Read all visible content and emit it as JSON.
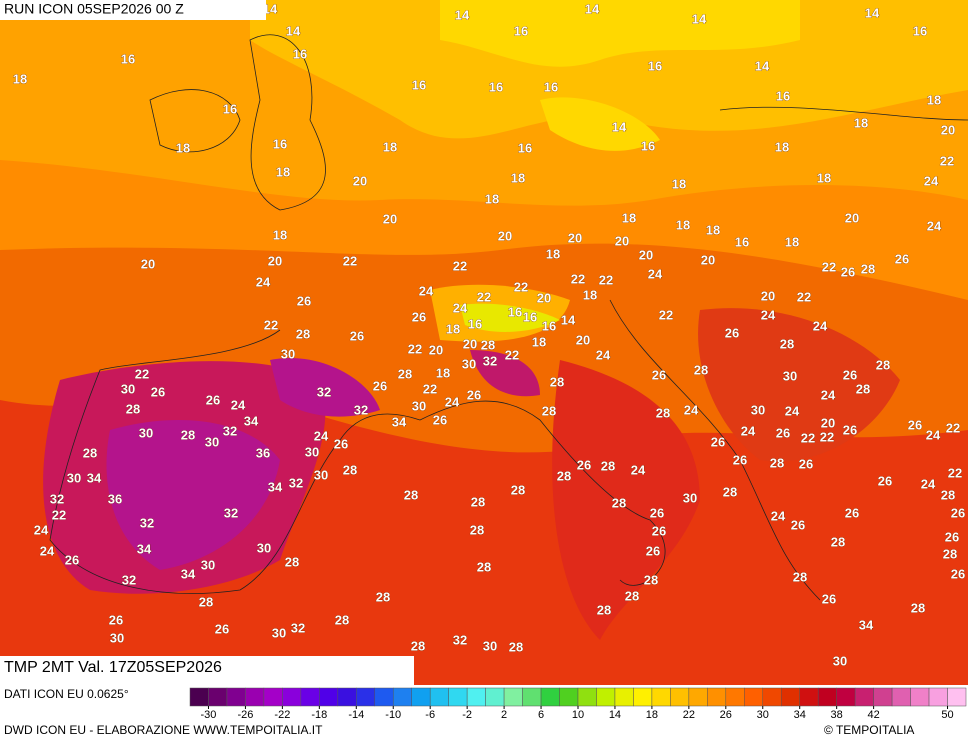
{
  "header": {
    "run": "RUN ICON 05SEP2026 00 Z",
    "field": "TMP 2MT Val. 17Z05SEP2026",
    "source": "DATI ICON EU 0.0625°",
    "credit": "DWD ICON EU - ELABORAZIONE WWW.TEMPOITALIA.IT",
    "copyright": "© TEMPOITALIA"
  },
  "map": {
    "labels": [
      18,
      16,
      16,
      18,
      16,
      14,
      14,
      14,
      16,
      14,
      14,
      14,
      16,
      16,
      14,
      16,
      16,
      16,
      16,
      18,
      18,
      20,
      14,
      16,
      16,
      18,
      16,
      18,
      20,
      18,
      18,
      18,
      18,
      22,
      24,
      18,
      20,
      18,
      20,
      20,
      20,
      18,
      18,
      18,
      16,
      18,
      20,
      24,
      20,
      20,
      22,
      22,
      18,
      20,
      24,
      20,
      22,
      26,
      28,
      26,
      24,
      26,
      24,
      22,
      22,
      20,
      22,
      22,
      18,
      24,
      22,
      28,
      26,
      26,
      18,
      16,
      16,
      16,
      16,
      14,
      22,
      20,
      22,
      24,
      24,
      30,
      22,
      20,
      20,
      28,
      32,
      22,
      18,
      20,
      24,
      26,
      28,
      30,
      22,
      30,
      26,
      32,
      26,
      28,
      18,
      22,
      28,
      26,
      28,
      30,
      26,
      28,
      28,
      26,
      24,
      32,
      30,
      24,
      26,
      28,
      28,
      24,
      30,
      24,
      24,
      28,
      30,
      28,
      32,
      34,
      24,
      34,
      26,
      26,
      20,
      26,
      24,
      26,
      22,
      26,
      22,
      26,
      24,
      22,
      28,
      30,
      36,
      30,
      28,
      26,
      28,
      24,
      26,
      28,
      26,
      30,
      34,
      34,
      32,
      30,
      28,
      26,
      24,
      22,
      32,
      36,
      28,
      28,
      28,
      30,
      28,
      28,
      22,
      32,
      32,
      28,
      26,
      24,
      26,
      26,
      26,
      24,
      28,
      26,
      26,
      28,
      34,
      30,
      24,
      26,
      30,
      28,
      28,
      26,
      28,
      34,
      32,
      28,
      26,
      28,
      28,
      28,
      28,
      26,
      28,
      26,
      28,
      26,
      28,
      34,
      30,
      32,
      30,
      28,
      32,
      30,
      28,
      30
    ]
  },
  "colorbar": {
    "lim": [
      -32,
      52
    ],
    "ticks": [
      -30,
      -26,
      -22,
      -18,
      -14,
      -10,
      -6,
      -2,
      2,
      6,
      10,
      14,
      18,
      22,
      26,
      30,
      34,
      38,
      42,
      50
    ],
    "colors": [
      "#4b0050",
      "#6a006e",
      "#800090",
      "#9a00b0",
      "#a400c8",
      "#8a00dc",
      "#6a00e6",
      "#5000e8",
      "#3a10e0",
      "#2a30e8",
      "#1e5af0",
      "#1e80f0",
      "#10a0f0",
      "#20c0f0",
      "#30d8f0",
      "#50f0f0",
      "#60f0d0",
      "#80f0a0",
      "#60e070",
      "#30d040",
      "#50d020",
      "#90e010",
      "#c0f000",
      "#e8f000",
      "#fff000",
      "#ffd800",
      "#ffc000",
      "#ffa800",
      "#ff9000",
      "#ff7800",
      "#ff6000",
      "#f04800",
      "#e03000",
      "#d01010",
      "#c00020",
      "#c00040",
      "#c82070",
      "#d04090",
      "#e060b0",
      "#f080c8",
      "#f8a0e0",
      "#ffc0f0"
    ]
  }
}
